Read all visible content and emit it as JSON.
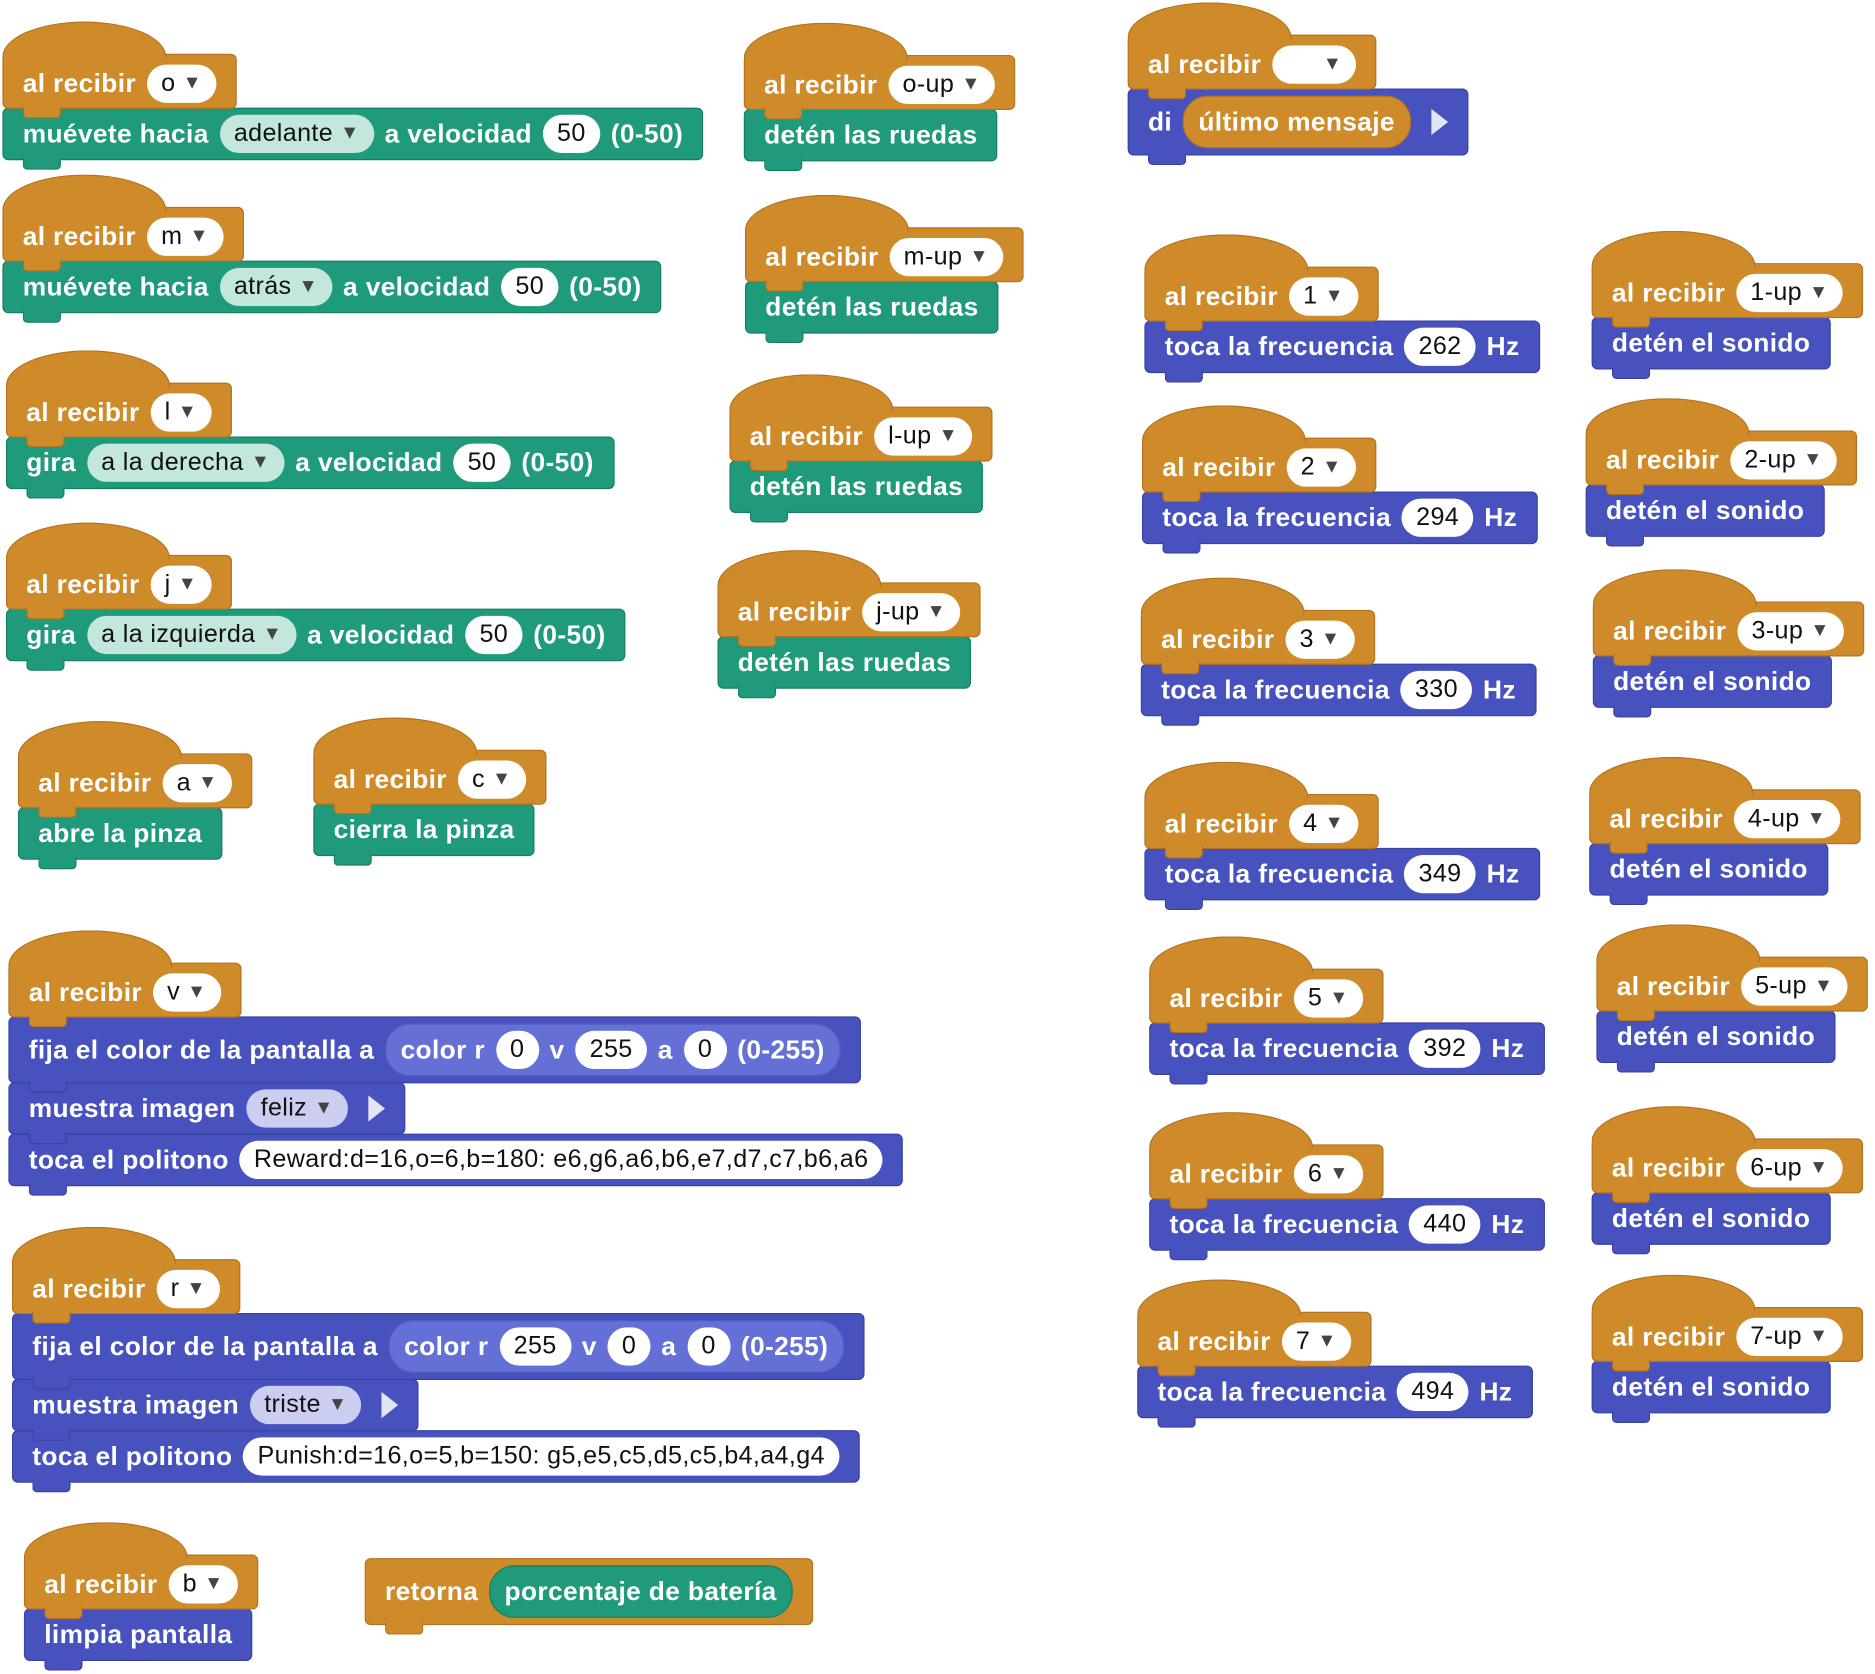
{
  "colors": {
    "event": "#CF8B2A",
    "motion": "#1F9A7A",
    "display": "#4752BF"
  },
  "scripts": [
    {
      "blocks": [
        {
          "kind": "hat",
          "cat": "ev",
          "parts": [
            {
              "t": "text",
              "v": "al recibir"
            },
            {
              "t": "dd",
              "v": "o"
            }
          ]
        },
        {
          "cat": "mo",
          "parts": [
            {
              "t": "text",
              "v": "muévete hacia"
            },
            {
              "t": "dd2",
              "v": "adelante"
            },
            {
              "t": "text",
              "v": "a velocidad"
            },
            {
              "t": "num",
              "v": "50"
            },
            {
              "t": "text",
              "v": "(0-50)"
            }
          ]
        }
      ]
    },
    {
      "blocks": [
        {
          "kind": "hat",
          "cat": "ev",
          "parts": [
            {
              "t": "text",
              "v": "al recibir"
            },
            {
              "t": "dd",
              "v": "m"
            }
          ]
        },
        {
          "cat": "mo",
          "parts": [
            {
              "t": "text",
              "v": "muévete hacia"
            },
            {
              "t": "dd2",
              "v": "atrás"
            },
            {
              "t": "text",
              "v": "a velocidad"
            },
            {
              "t": "num",
              "v": "50"
            },
            {
              "t": "text",
              "v": "(0-50)"
            }
          ]
        }
      ]
    },
    {
      "blocks": [
        {
          "kind": "hat",
          "cat": "ev",
          "parts": [
            {
              "t": "text",
              "v": "al recibir"
            },
            {
              "t": "dd",
              "v": "l"
            }
          ]
        },
        {
          "cat": "mo",
          "parts": [
            {
              "t": "text",
              "v": "gira"
            },
            {
              "t": "dd2",
              "v": "a la derecha"
            },
            {
              "t": "text",
              "v": "a velocidad"
            },
            {
              "t": "num",
              "v": "50"
            },
            {
              "t": "text",
              "v": "(0-50)"
            }
          ]
        }
      ]
    },
    {
      "blocks": [
        {
          "kind": "hat",
          "cat": "ev",
          "parts": [
            {
              "t": "text",
              "v": "al recibir"
            },
            {
              "t": "dd",
              "v": "j"
            }
          ]
        },
        {
          "cat": "mo",
          "parts": [
            {
              "t": "text",
              "v": "gira"
            },
            {
              "t": "dd2",
              "v": "a la izquierda"
            },
            {
              "t": "text",
              "v": "a velocidad"
            },
            {
              "t": "num",
              "v": "50"
            },
            {
              "t": "text",
              "v": "(0-50)"
            }
          ]
        }
      ]
    },
    {
      "blocks": [
        {
          "kind": "hat",
          "cat": "ev",
          "parts": [
            {
              "t": "text",
              "v": "al recibir"
            },
            {
              "t": "dd",
              "v": "a"
            }
          ]
        },
        {
          "cat": "mo",
          "parts": [
            {
              "t": "text",
              "v": "abre la pinza"
            }
          ]
        }
      ]
    },
    {
      "blocks": [
        {
          "kind": "hat",
          "cat": "ev",
          "parts": [
            {
              "t": "text",
              "v": "al recibir"
            },
            {
              "t": "dd",
              "v": "c"
            }
          ]
        },
        {
          "cat": "mo",
          "parts": [
            {
              "t": "text",
              "v": "cierra la pinza"
            }
          ]
        }
      ]
    },
    {
      "blocks": [
        {
          "kind": "hat",
          "cat": "ev",
          "parts": [
            {
              "t": "text",
              "v": "al recibir"
            },
            {
              "t": "dd",
              "v": "v"
            }
          ]
        },
        {
          "cat": "di",
          "tall": true,
          "parts": [
            {
              "t": "text",
              "v": "fija el color de la pantalla a"
            },
            {
              "t": "rep",
              "cat": "di3",
              "parts": [
                {
                  "t": "text",
                  "v": "color r"
                },
                {
                  "t": "num",
                  "v": "0"
                },
                {
                  "t": "text",
                  "v": "v"
                },
                {
                  "t": "num",
                  "v": "255"
                },
                {
                  "t": "text",
                  "v": "a"
                },
                {
                  "t": "num",
                  "v": "0"
                },
                {
                  "t": "text",
                  "v": "(0-255)"
                }
              ]
            }
          ]
        },
        {
          "cat": "di",
          "parts": [
            {
              "t": "text",
              "v": "muestra imagen"
            },
            {
              "t": "dd3",
              "v": "feliz"
            },
            {
              "t": "arrow"
            }
          ]
        },
        {
          "cat": "di",
          "parts": [
            {
              "t": "text",
              "v": "toca el politono"
            },
            {
              "t": "num",
              "v": "Reward:d=16,o=6,b=180: e6,g6,a6,b6,e7,d7,c7,b6,a6"
            }
          ]
        }
      ]
    },
    {
      "blocks": [
        {
          "kind": "hat",
          "cat": "ev",
          "parts": [
            {
              "t": "text",
              "v": "al recibir"
            },
            {
              "t": "dd",
              "v": "r"
            }
          ]
        },
        {
          "cat": "di",
          "tall": true,
          "parts": [
            {
              "t": "text",
              "v": "fija el color de la pantalla a"
            },
            {
              "t": "rep",
              "cat": "di3",
              "parts": [
                {
                  "t": "text",
                  "v": "color r"
                },
                {
                  "t": "num",
                  "v": "255"
                },
                {
                  "t": "text",
                  "v": "v"
                },
                {
                  "t": "num",
                  "v": "0"
                },
                {
                  "t": "text",
                  "v": "a"
                },
                {
                  "t": "num",
                  "v": "0"
                },
                {
                  "t": "text",
                  "v": "(0-255)"
                }
              ]
            }
          ]
        },
        {
          "cat": "di",
          "parts": [
            {
              "t": "text",
              "v": "muestra imagen"
            },
            {
              "t": "dd3",
              "v": "triste"
            },
            {
              "t": "arrow"
            }
          ]
        },
        {
          "cat": "di",
          "parts": [
            {
              "t": "text",
              "v": "toca el politono"
            },
            {
              "t": "num",
              "v": "Punish:d=16,o=5,b=150: g5,e5,c5,d5,c5,b4,a4,g4"
            }
          ]
        }
      ]
    },
    {
      "blocks": [
        {
          "kind": "hat",
          "cat": "ev",
          "parts": [
            {
              "t": "text",
              "v": "al recibir"
            },
            {
              "t": "dd",
              "v": "b"
            }
          ]
        },
        {
          "cat": "di",
          "parts": [
            {
              "t": "text",
              "v": "limpia pantalla"
            }
          ]
        }
      ]
    },
    {
      "blocks": [
        {
          "cat": "ev",
          "tall": true,
          "parts": [
            {
              "t": "text",
              "v": "retorna"
            },
            {
              "t": "rep",
              "cat": "mo3",
              "parts": [
                {
                  "t": "text",
                  "v": "porcentaje de batería"
                }
              ]
            }
          ]
        }
      ]
    },
    {
      "blocks": [
        {
          "kind": "hat",
          "cat": "ev",
          "parts": [
            {
              "t": "text",
              "v": "al recibir"
            },
            {
              "t": "dd",
              "v": "o-up"
            }
          ]
        },
        {
          "cat": "mo",
          "parts": [
            {
              "t": "text",
              "v": "detén las ruedas"
            }
          ]
        }
      ]
    },
    {
      "blocks": [
        {
          "kind": "hat",
          "cat": "ev",
          "parts": [
            {
              "t": "text",
              "v": "al recibir"
            },
            {
              "t": "dd",
              "v": "m-up"
            }
          ]
        },
        {
          "cat": "mo",
          "parts": [
            {
              "t": "text",
              "v": "detén las ruedas"
            }
          ]
        }
      ]
    },
    {
      "blocks": [
        {
          "kind": "hat",
          "cat": "ev",
          "parts": [
            {
              "t": "text",
              "v": "al recibir"
            },
            {
              "t": "dd",
              "v": "l-up"
            }
          ]
        },
        {
          "cat": "mo",
          "parts": [
            {
              "t": "text",
              "v": "detén las ruedas"
            }
          ]
        }
      ]
    },
    {
      "blocks": [
        {
          "kind": "hat",
          "cat": "ev",
          "parts": [
            {
              "t": "text",
              "v": "al recibir"
            },
            {
              "t": "dd",
              "v": "j-up"
            }
          ]
        },
        {
          "cat": "mo",
          "parts": [
            {
              "t": "text",
              "v": "detén las ruedas"
            }
          ]
        }
      ]
    },
    {
      "blocks": [
        {
          "kind": "hat",
          "cat": "ev",
          "parts": [
            {
              "t": "text",
              "v": "al recibir"
            },
            {
              "t": "dd",
              "v": "    "
            }
          ]
        },
        {
          "cat": "di",
          "tall": true,
          "parts": [
            {
              "t": "text",
              "v": "di"
            },
            {
              "t": "rep",
              "cat": "ev3",
              "parts": [
                {
                  "t": "text",
                  "v": "último mensaje"
                }
              ]
            },
            {
              "t": "arrow"
            }
          ]
        }
      ]
    },
    {
      "blocks": [
        {
          "kind": "hat",
          "cat": "ev",
          "parts": [
            {
              "t": "text",
              "v": "al recibir"
            },
            {
              "t": "dd",
              "v": "1"
            }
          ]
        },
        {
          "cat": "di",
          "parts": [
            {
              "t": "text",
              "v": "toca la frecuencia"
            },
            {
              "t": "num",
              "v": "262"
            },
            {
              "t": "text",
              "v": "Hz"
            }
          ]
        }
      ]
    },
    {
      "blocks": [
        {
          "kind": "hat",
          "cat": "ev",
          "parts": [
            {
              "t": "text",
              "v": "al recibir"
            },
            {
              "t": "dd",
              "v": "2"
            }
          ]
        },
        {
          "cat": "di",
          "parts": [
            {
              "t": "text",
              "v": "toca la frecuencia"
            },
            {
              "t": "num",
              "v": "294"
            },
            {
              "t": "text",
              "v": "Hz"
            }
          ]
        }
      ]
    },
    {
      "blocks": [
        {
          "kind": "hat",
          "cat": "ev",
          "parts": [
            {
              "t": "text",
              "v": "al recibir"
            },
            {
              "t": "dd",
              "v": "3"
            }
          ]
        },
        {
          "cat": "di",
          "parts": [
            {
              "t": "text",
              "v": "toca la frecuencia"
            },
            {
              "t": "num",
              "v": "330"
            },
            {
              "t": "text",
              "v": "Hz"
            }
          ]
        }
      ]
    },
    {
      "blocks": [
        {
          "kind": "hat",
          "cat": "ev",
          "parts": [
            {
              "t": "text",
              "v": "al recibir"
            },
            {
              "t": "dd",
              "v": "4"
            }
          ]
        },
        {
          "cat": "di",
          "parts": [
            {
              "t": "text",
              "v": "toca la frecuencia"
            },
            {
              "t": "num",
              "v": "349"
            },
            {
              "t": "text",
              "v": "Hz"
            }
          ]
        }
      ]
    },
    {
      "blocks": [
        {
          "kind": "hat",
          "cat": "ev",
          "parts": [
            {
              "t": "text",
              "v": "al recibir"
            },
            {
              "t": "dd",
              "v": "5"
            }
          ]
        },
        {
          "cat": "di",
          "parts": [
            {
              "t": "text",
              "v": "toca la frecuencia"
            },
            {
              "t": "num",
              "v": "392"
            },
            {
              "t": "text",
              "v": "Hz"
            }
          ]
        }
      ]
    },
    {
      "blocks": [
        {
          "kind": "hat",
          "cat": "ev",
          "parts": [
            {
              "t": "text",
              "v": "al recibir"
            },
            {
              "t": "dd",
              "v": "6"
            }
          ]
        },
        {
          "cat": "di",
          "parts": [
            {
              "t": "text",
              "v": "toca la frecuencia"
            },
            {
              "t": "num",
              "v": "440"
            },
            {
              "t": "text",
              "v": "Hz"
            }
          ]
        }
      ]
    },
    {
      "blocks": [
        {
          "kind": "hat",
          "cat": "ev",
          "parts": [
            {
              "t": "text",
              "v": "al recibir"
            },
            {
              "t": "dd",
              "v": "7"
            }
          ]
        },
        {
          "cat": "di",
          "parts": [
            {
              "t": "text",
              "v": "toca la frecuencia"
            },
            {
              "t": "num",
              "v": "494"
            },
            {
              "t": "text",
              "v": "Hz"
            }
          ]
        }
      ]
    },
    {
      "blocks": [
        {
          "kind": "hat",
          "cat": "ev",
          "parts": [
            {
              "t": "text",
              "v": "al recibir"
            },
            {
              "t": "dd",
              "v": "1-up"
            }
          ]
        },
        {
          "cat": "di",
          "parts": [
            {
              "t": "text",
              "v": "detén el sonido"
            }
          ]
        }
      ]
    },
    {
      "blocks": [
        {
          "kind": "hat",
          "cat": "ev",
          "parts": [
            {
              "t": "text",
              "v": "al recibir"
            },
            {
              "t": "dd",
              "v": "2-up"
            }
          ]
        },
        {
          "cat": "di",
          "parts": [
            {
              "t": "text",
              "v": "detén el sonido"
            }
          ]
        }
      ]
    },
    {
      "blocks": [
        {
          "kind": "hat",
          "cat": "ev",
          "parts": [
            {
              "t": "text",
              "v": "al recibir"
            },
            {
              "t": "dd",
              "v": "3-up"
            }
          ]
        },
        {
          "cat": "di",
          "parts": [
            {
              "t": "text",
              "v": "detén el sonido"
            }
          ]
        }
      ]
    },
    {
      "blocks": [
        {
          "kind": "hat",
          "cat": "ev",
          "parts": [
            {
              "t": "text",
              "v": "al recibir"
            },
            {
              "t": "dd",
              "v": "4-up"
            }
          ]
        },
        {
          "cat": "di",
          "parts": [
            {
              "t": "text",
              "v": "detén el sonido"
            }
          ]
        }
      ]
    },
    {
      "blocks": [
        {
          "kind": "hat",
          "cat": "ev",
          "parts": [
            {
              "t": "text",
              "v": "al recibir"
            },
            {
              "t": "dd",
              "v": "5-up"
            }
          ]
        },
        {
          "cat": "di",
          "parts": [
            {
              "t": "text",
              "v": "detén el sonido"
            }
          ]
        }
      ]
    },
    {
      "blocks": [
        {
          "kind": "hat",
          "cat": "ev",
          "parts": [
            {
              "t": "text",
              "v": "al recibir"
            },
            {
              "t": "dd",
              "v": "6-up"
            }
          ]
        },
        {
          "cat": "di",
          "parts": [
            {
              "t": "text",
              "v": "detén el sonido"
            }
          ]
        }
      ]
    },
    {
      "blocks": [
        {
          "kind": "hat",
          "cat": "ev",
          "parts": [
            {
              "t": "text",
              "v": "al recibir"
            },
            {
              "t": "dd",
              "v": "7-up"
            }
          ]
        },
        {
          "cat": "di",
          "parts": [
            {
              "t": "text",
              "v": "detén el sonido"
            }
          ]
        }
      ]
    }
  ]
}
